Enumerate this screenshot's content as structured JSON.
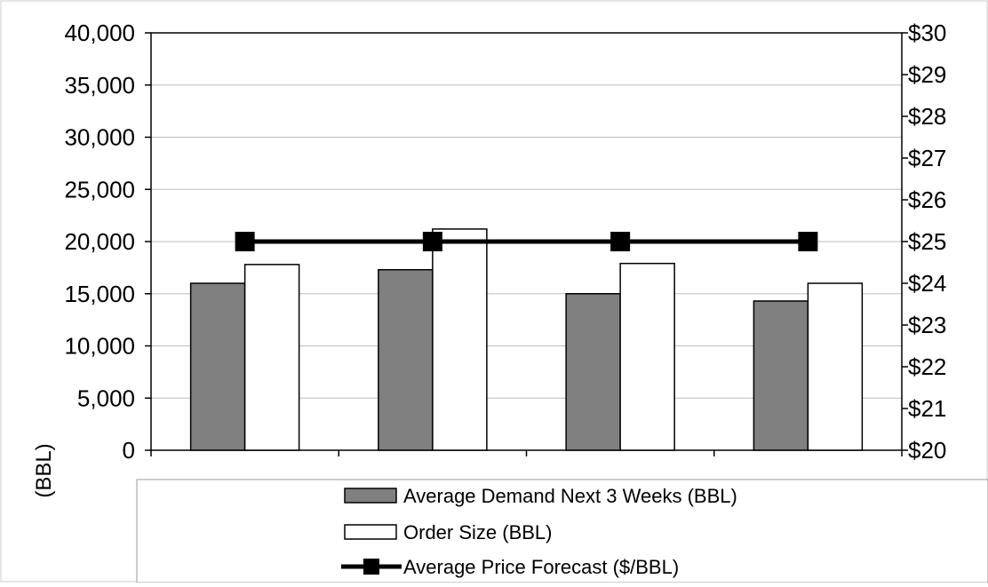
{
  "chart_data": {
    "type": "bar",
    "title": "",
    "ylabel": "(BBL)",
    "categories": [
      "",
      "",
      "",
      ""
    ],
    "ylim": [
      0,
      40000
    ],
    "y_ticks": [
      "0",
      "5,000",
      "10,000",
      "15,000",
      "20,000",
      "25,000",
      "30,000",
      "35,000",
      "40,000"
    ],
    "y2lim": [
      20,
      30
    ],
    "y2_ticks": [
      "$20",
      "$21",
      "$22",
      "$23",
      "$24",
      "$25",
      "$26",
      "$27",
      "$28",
      "$29",
      "$30"
    ],
    "grid": true,
    "legend_position": "bottom",
    "series": [
      {
        "name": "Average Demand Next 3 Weeks (BBL)",
        "kind": "bar",
        "axis": "left",
        "color": "#808080",
        "values": [
          16000,
          17300,
          15000,
          14300
        ]
      },
      {
        "name": "Order Size (BBL)",
        "kind": "bar",
        "axis": "left",
        "color": "#ffffff",
        "values": [
          17800,
          21200,
          17900,
          16000
        ]
      },
      {
        "name": "Average Price Forecast ($/BBL)",
        "kind": "line",
        "axis": "right",
        "color": "#000000",
        "values": [
          25,
          25,
          25,
          25
        ]
      }
    ]
  }
}
